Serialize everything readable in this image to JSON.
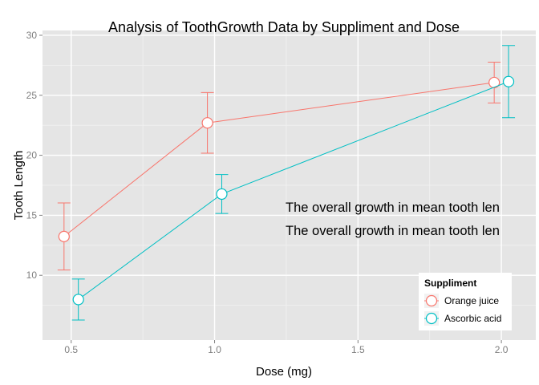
{
  "chart_data": {
    "type": "line",
    "title": "Analysis of ToothGrowth Data by Suppliment and Dose",
    "xlabel": "Dose (mg)",
    "ylabel": "Tooth Length",
    "x_ticks": [
      "0.5",
      "1.0",
      "1.5",
      "2.0"
    ],
    "x_tick_values": [
      0.5,
      1.0,
      1.5,
      2.0
    ],
    "y_ticks": [
      "10",
      "15",
      "20",
      "25",
      "30"
    ],
    "y_tick_values": [
      10,
      15,
      20,
      25,
      30
    ],
    "xlim": [
      0.4,
      2.12
    ],
    "ylim": [
      4.6,
      30.4
    ],
    "grid": true,
    "legend": {
      "title": "Suppliment",
      "position": "bottom-right"
    },
    "series": [
      {
        "name": "Orange juice",
        "color": "#F8766D",
        "x": [
          0.5,
          1.0,
          2.0
        ],
        "y": [
          13.23,
          22.7,
          26.06
        ],
        "err_low": [
          10.44,
          20.17,
          24.36
        ],
        "err_high": [
          16.03,
          25.23,
          27.76
        ]
      },
      {
        "name": "Ascorbic acid",
        "color": "#00BFC4",
        "x": [
          0.5,
          1.0,
          2.0
        ],
        "y": [
          7.98,
          16.77,
          26.14
        ],
        "err_low": [
          6.27,
          15.15,
          23.13
        ],
        "err_high": [
          9.69,
          18.39,
          29.15
        ]
      }
    ],
    "annotations": [
      "The overall growth in mean tooth len",
      "The overall growth in mean tooth len"
    ]
  }
}
